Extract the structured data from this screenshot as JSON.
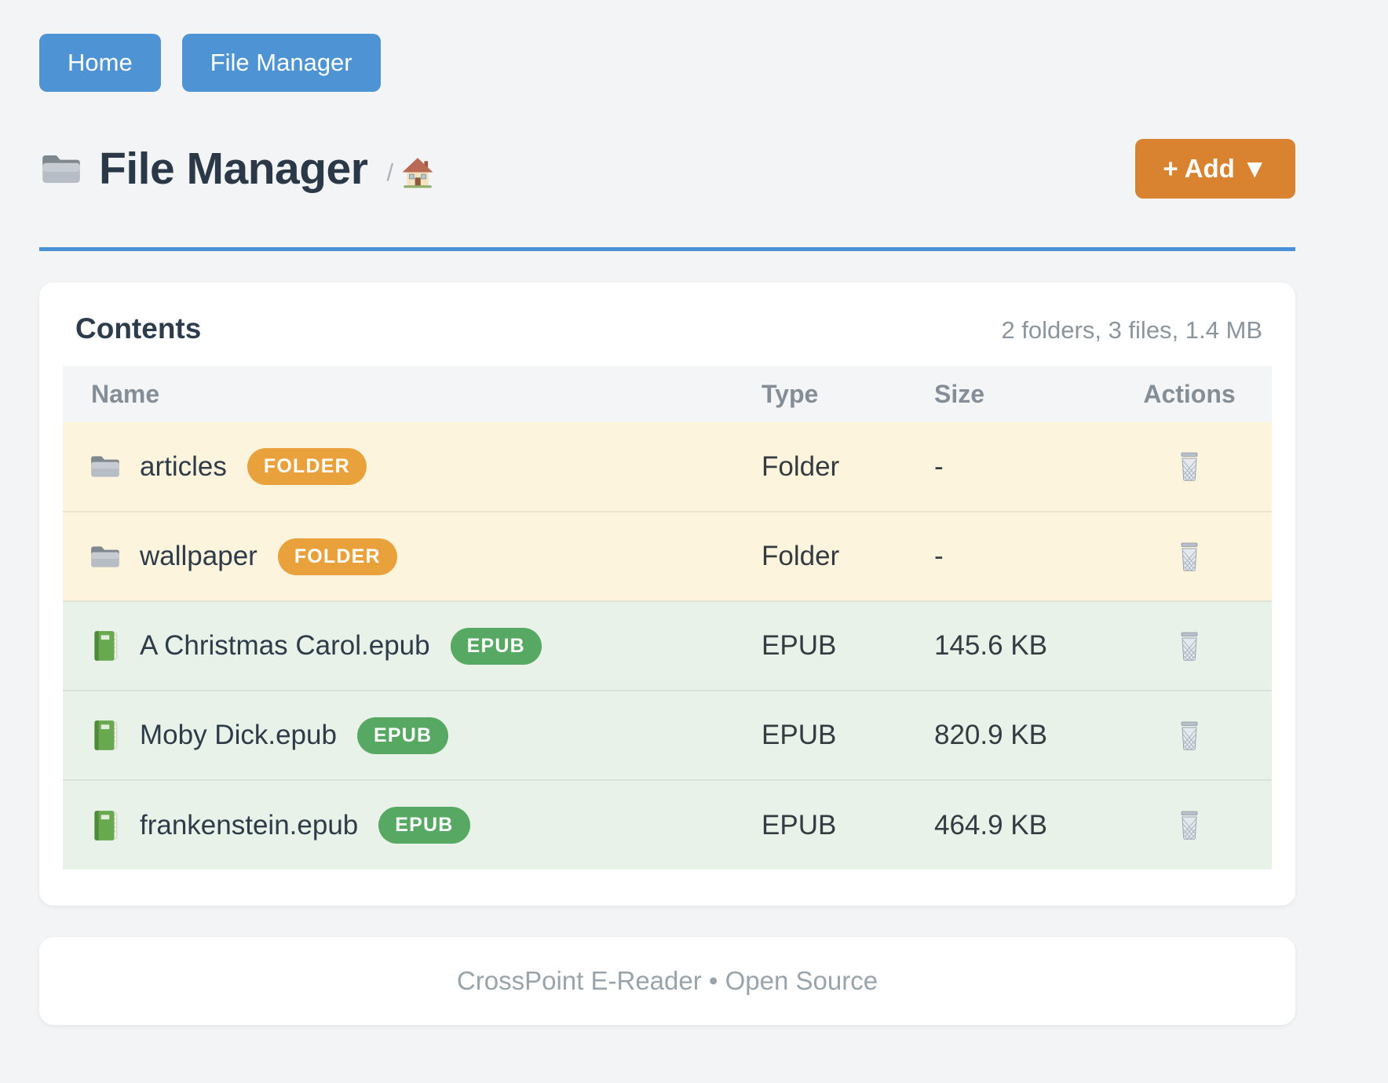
{
  "nav": {
    "items": [
      {
        "label": "Home"
      },
      {
        "label": "File Manager"
      }
    ]
  },
  "header": {
    "title": "File Manager",
    "title_icon": "folder-icon",
    "breadcrumb_separator": "/",
    "breadcrumb_home_icon": "house-icon",
    "add_button_label": "+ Add ▼"
  },
  "contents": {
    "title": "Contents",
    "summary": "2 folders, 3 files, 1.4 MB",
    "columns": [
      "Name",
      "Type",
      "Size",
      "Actions"
    ],
    "action_icon": "wastebasket-icon",
    "rows": [
      {
        "icon": "folder-icon",
        "name": "articles",
        "badge": "FOLDER",
        "type": "Folder",
        "size": "-",
        "kind": "folder"
      },
      {
        "icon": "folder-icon",
        "name": "wallpaper",
        "badge": "FOLDER",
        "type": "Folder",
        "size": "-",
        "kind": "folder"
      },
      {
        "icon": "green-book-icon",
        "name": "A Christmas Carol.epub",
        "badge": "EPUB",
        "type": "EPUB",
        "size": "145.6 KB",
        "kind": "file"
      },
      {
        "icon": "green-book-icon",
        "name": "Moby Dick.epub",
        "badge": "EPUB",
        "type": "EPUB",
        "size": "820.9 KB",
        "kind": "file"
      },
      {
        "icon": "green-book-icon",
        "name": "frankenstein.epub",
        "badge": "EPUB",
        "type": "EPUB",
        "size": "464.9 KB",
        "kind": "file"
      }
    ]
  },
  "footer": {
    "text": "CrossPoint E-Reader • Open Source"
  },
  "colors": {
    "nav-button": "#4e93d3",
    "divider": "#4a90d5",
    "add-button": "#d9822f",
    "folder-badge": "#e9a23b",
    "epub-badge": "#56a863",
    "folder-row": "#fdf4dd",
    "file-row": "#e8f2e8"
  }
}
